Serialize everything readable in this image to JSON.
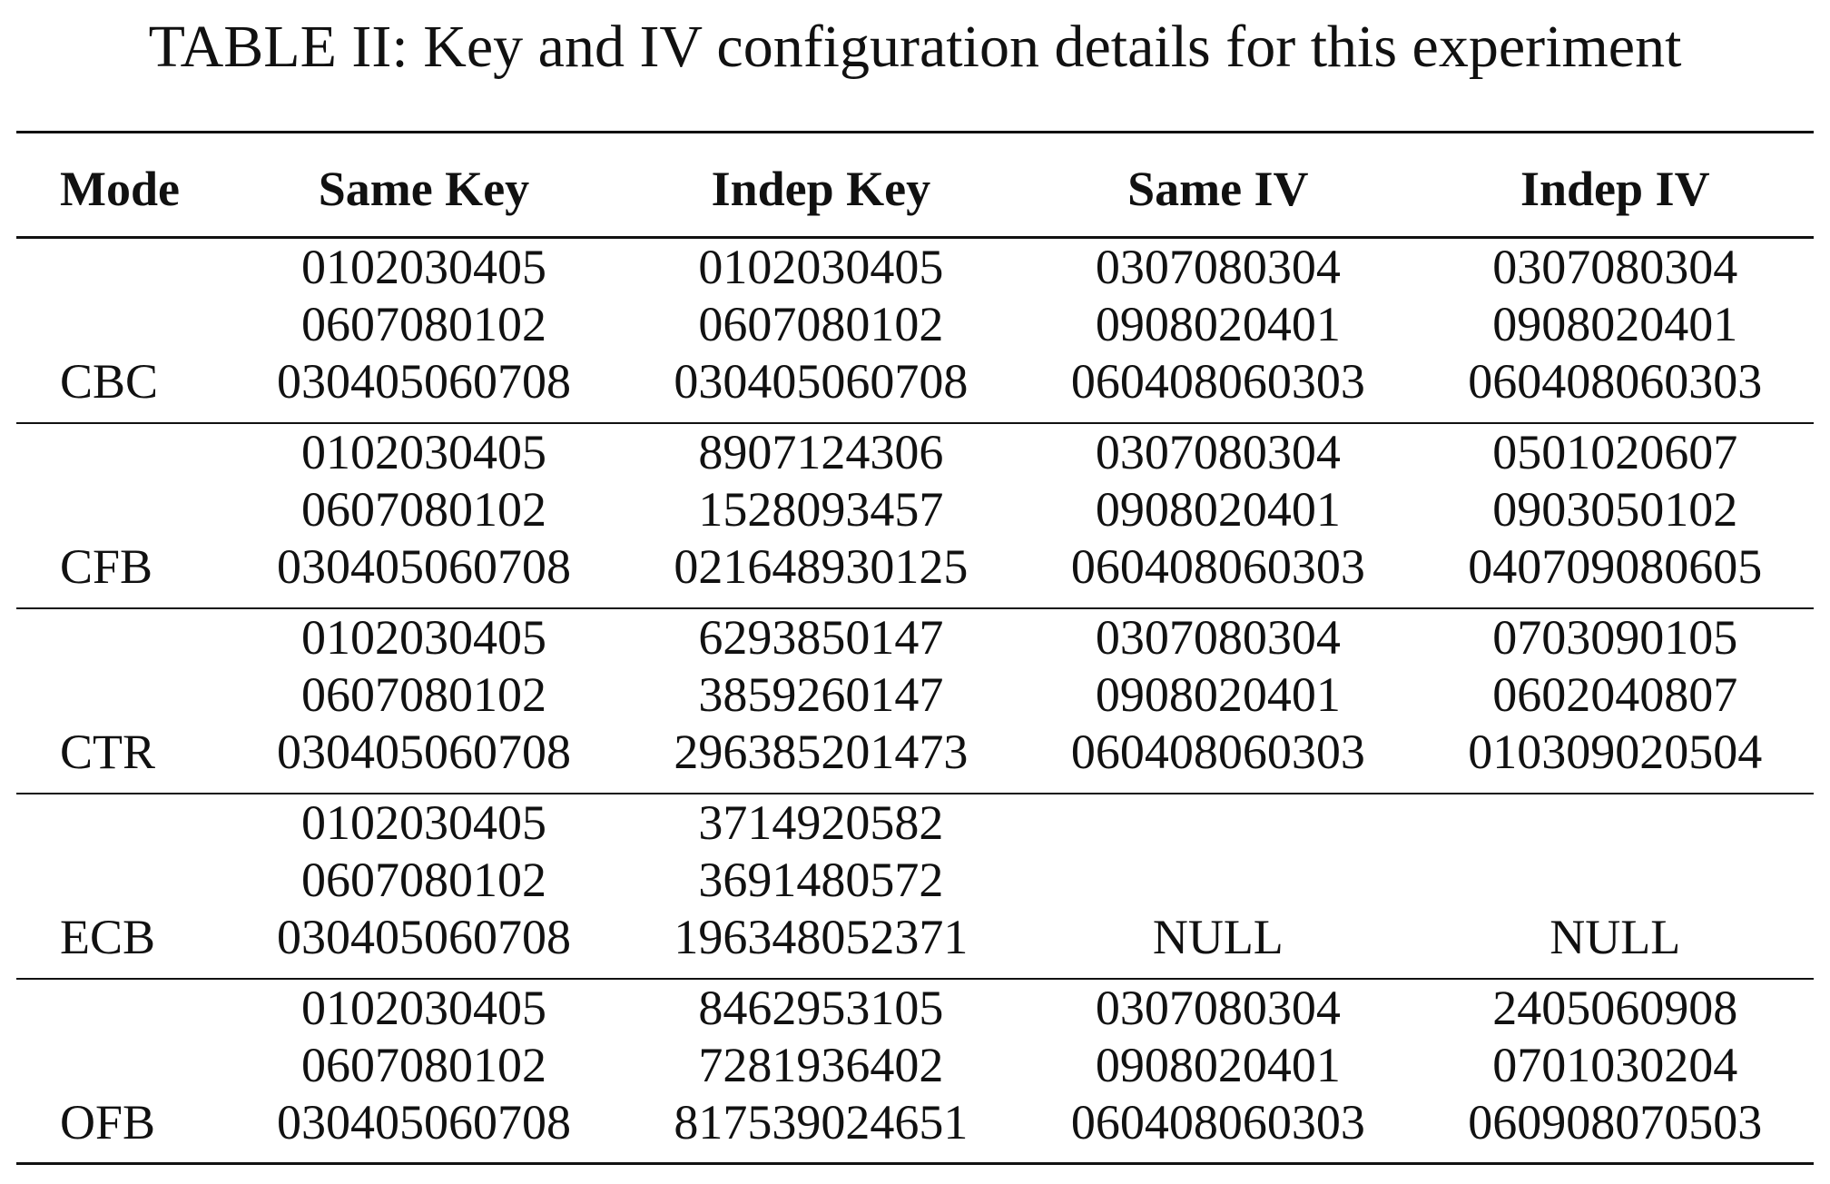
{
  "caption": "TABLE II: Key and IV configuration details for this experiment",
  "table": {
    "headers": [
      "Mode",
      "Same Key",
      "Indep Key",
      "Same IV",
      "Indep IV"
    ],
    "rows": [
      {
        "mode": "CBC",
        "same_key": [
          "0102030405",
          "0607080102",
          "030405060708"
        ],
        "indep_key": [
          "0102030405",
          "0607080102",
          "030405060708"
        ],
        "same_iv": [
          "0307080304",
          "0908020401",
          "060408060303"
        ],
        "indep_iv": [
          "0307080304",
          "0908020401",
          "060408060303"
        ]
      },
      {
        "mode": "CFB",
        "same_key": [
          "0102030405",
          "0607080102",
          "030405060708"
        ],
        "indep_key": [
          "8907124306",
          "1528093457",
          "021648930125"
        ],
        "same_iv": [
          "0307080304",
          "0908020401",
          "060408060303"
        ],
        "indep_iv": [
          "0501020607",
          "0903050102",
          "040709080605"
        ]
      },
      {
        "mode": "CTR",
        "same_key": [
          "0102030405",
          "0607080102",
          "030405060708"
        ],
        "indep_key": [
          "6293850147",
          "3859260147",
          "296385201473"
        ],
        "same_iv": [
          "0307080304",
          "0908020401",
          "060408060303"
        ],
        "indep_iv": [
          "0703090105",
          "0602040807",
          "010309020504"
        ]
      },
      {
        "mode": "ECB",
        "same_key": [
          "0102030405",
          "0607080102",
          "030405060708"
        ],
        "indep_key": [
          "3714920582",
          "3691480572",
          "196348052371"
        ],
        "same_iv": [
          "",
          "",
          "NULL"
        ],
        "indep_iv": [
          "",
          "",
          "NULL"
        ]
      },
      {
        "mode": "OFB",
        "same_key": [
          "0102030405",
          "0607080102",
          "030405060708"
        ],
        "indep_key": [
          "8462953105",
          "7281936402",
          "817539024651"
        ],
        "same_iv": [
          "0307080304",
          "0908020401",
          "060408060303"
        ],
        "indep_iv": [
          "2405060908",
          "0701030204",
          "060908070503"
        ]
      }
    ]
  }
}
